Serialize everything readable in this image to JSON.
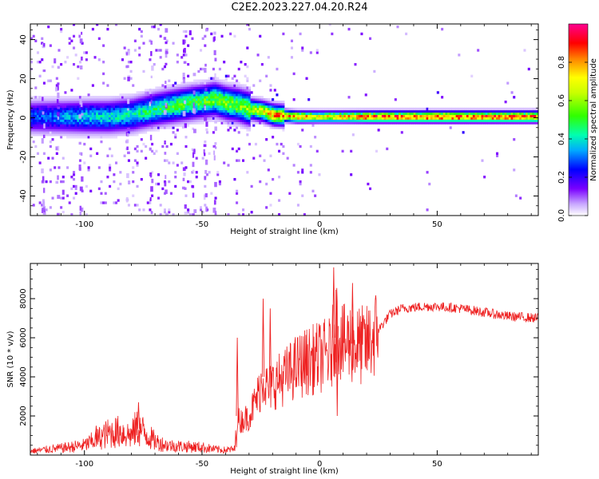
{
  "title": "C2E2.2023.227.04.20.R24",
  "chart_data": [
    {
      "type": "heatmap",
      "xlabel": "Height of straight line (km)",
      "ylabel": "Frequency (Hz)",
      "xlim": [
        -123,
        93
      ],
      "ylim": [
        -50,
        48
      ],
      "x_ticks": [
        -100,
        -50,
        0,
        50
      ],
      "y_ticks": [
        -40,
        -20,
        0,
        20,
        40
      ],
      "colorbar": {
        "label": "Normalized spectral amplitude",
        "range": [
          0,
          1
        ],
        "ticks": [
          0.0,
          0.2,
          0.4,
          0.6,
          0.8
        ],
        "colors": [
          "#ffffff",
          "#b08cff",
          "#5a00ff",
          "#0000ff",
          "#00c8ff",
          "#00ff80",
          "#40ff00",
          "#ffff00",
          "#ff8000",
          "#ff0000",
          "#ff00a0"
        ]
      },
      "ridge": {
        "x": [
          -123,
          -110,
          -100,
          -90,
          -80,
          -70,
          -60,
          -50,
          -45,
          -40,
          -35,
          -30,
          -25,
          -20,
          -10,
          0,
          10,
          20,
          30,
          50,
          70,
          93
        ],
        "frequency": [
          0,
          0,
          0,
          0,
          1,
          4,
          6,
          8,
          9,
          7,
          6,
          4,
          3,
          1,
          0,
          0,
          0,
          0,
          0,
          0,
          0,
          0
        ],
        "peak_amplitude": [
          0.3,
          0.35,
          0.4,
          0.42,
          0.45,
          0.5,
          0.55,
          0.55,
          0.6,
          0.6,
          0.6,
          0.65,
          0.7,
          0.85,
          0.85,
          0.75,
          0.8,
          0.9,
          0.92,
          0.92,
          0.92,
          0.9
        ]
      }
    },
    {
      "type": "line",
      "xlabel": "Height of straight line (km)",
      "ylabel": "SNR (10 * v/v)",
      "xlim": [
        -123,
        93
      ],
      "ylim": [
        0,
        9800
      ],
      "x_ticks": [
        -100,
        -50,
        0,
        50
      ],
      "y_ticks": [
        2000,
        4000,
        6000,
        8000
      ],
      "color": "#ee2222",
      "x": [
        -123,
        -110,
        -100,
        -90,
        -85,
        -80,
        -78,
        -75,
        -70,
        -65,
        -60,
        -50,
        -45,
        -40,
        -36,
        -35,
        -34,
        -30,
        -26,
        -24,
        -22,
        -20,
        -15,
        -10,
        -5,
        0,
        5,
        7,
        10,
        13,
        15,
        20,
        25,
        30,
        35,
        45,
        50,
        60,
        70,
        80,
        93
      ],
      "y": [
        200,
        350,
        500,
        1100,
        1200,
        1000,
        1400,
        1200,
        700,
        500,
        450,
        400,
        300,
        250,
        300,
        2000,
        1700,
        2000,
        3100,
        4000,
        3300,
        3600,
        4000,
        4500,
        4800,
        5000,
        5200,
        6800,
        5600,
        5800,
        5600,
        5600,
        6400,
        7200,
        7500,
        7600,
        7600,
        7500,
        7300,
        7100,
        7000
      ],
      "spikes": [
        {
          "x": -35,
          "y": 6000
        },
        {
          "x": -21,
          "y": 7500
        },
        {
          "x": -24,
          "y": 8000
        },
        {
          "x": 6,
          "y": 9600
        },
        {
          "x": 7.5,
          "y": 2000
        },
        {
          "x": 14,
          "y": 8800
        },
        {
          "x": -77,
          "y": 2700
        },
        {
          "x": -95,
          "y": 1500
        }
      ]
    }
  ]
}
